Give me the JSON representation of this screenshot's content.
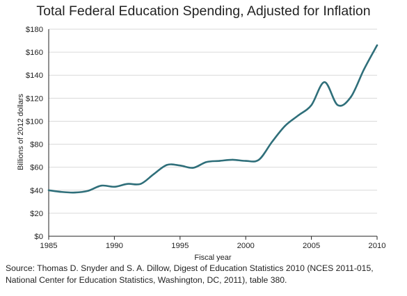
{
  "chart_data": {
    "type": "line",
    "title": "Total Federal Education Spending, Adjusted for Inflation",
    "xlabel": "Fiscal year",
    "ylabel": "Billions of 2012 dollars",
    "xlim": [
      1985,
      2010
    ],
    "ylim": [
      0,
      180
    ],
    "x_ticks": [
      "1985",
      "1990",
      "1995",
      "2000",
      "2005",
      "2010"
    ],
    "y_ticks": [
      "$0",
      "$20",
      "$40",
      "$60",
      "$80",
      "$100",
      "$120",
      "$140",
      "$160",
      "$180"
    ],
    "grid": "horizontal",
    "line_color": "#2f6f7a",
    "series": [
      {
        "x": [
          1985,
          1986,
          1987,
          1988,
          1989,
          1990,
          1991,
          1992,
          1993,
          1994,
          1995,
          1996,
          1997,
          1998,
          1999,
          2000,
          2001,
          2002,
          2003,
          2004,
          2005,
          2006,
          2007,
          2008,
          2009,
          2010
        ],
        "values": [
          40,
          38.5,
          38,
          39.5,
          44,
          43,
          45.5,
          45.5,
          54,
          62,
          61.5,
          59.5,
          64.5,
          65.5,
          66.5,
          65.5,
          66.5,
          82,
          96,
          105,
          114,
          134,
          114,
          121,
          145,
          166
        ]
      }
    ]
  },
  "source_note": "Source: Thomas D. Snyder and S. A. Dillow, Digest of Education Statistics 2010 (NCES 2011-015, National Center for Education Statistics, Washington, DC, 2011), table 380."
}
